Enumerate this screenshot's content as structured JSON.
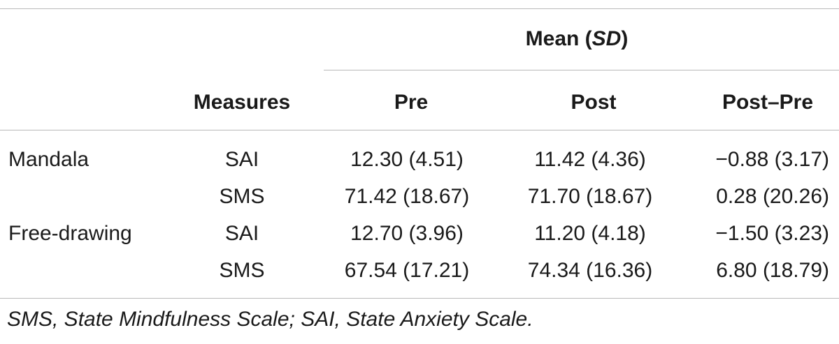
{
  "table": {
    "group_header": {
      "main": "Mean (",
      "italic": "SD",
      "close": ")"
    },
    "columns": {
      "measures": "Measures",
      "pre": "Pre",
      "post": "Post",
      "diff": "Post–Pre"
    },
    "rows": [
      {
        "group": "Mandala",
        "measure": "SAI",
        "pre": "12.30 (4.51)",
        "post": "11.42 (4.36)",
        "diff": "−0.88 (3.17)"
      },
      {
        "group": "",
        "measure": "SMS",
        "pre": "71.42 (18.67)",
        "post": "71.70 (18.67)",
        "diff": "0.28 (20.26)"
      },
      {
        "group": "Free-drawing",
        "measure": "SAI",
        "pre": "12.70 (3.96)",
        "post": "11.20 (4.18)",
        "diff": "−1.50 (3.23)"
      },
      {
        "group": "",
        "measure": "SMS",
        "pre": "67.54 (17.21)",
        "post": "74.34 (16.36)",
        "diff": "6.80 (18.79)"
      }
    ]
  },
  "footnote": "SMS, State Mindfulness Scale; SAI, State Anxiety Scale."
}
